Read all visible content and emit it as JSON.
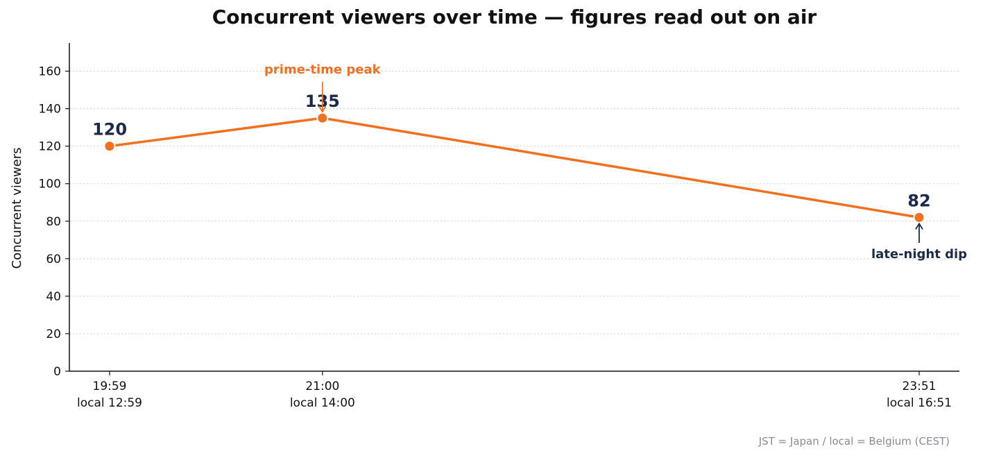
{
  "chart_data": {
    "type": "line",
    "title": "Concurrent viewers over time — figures read out on air",
    "ylabel": "Concurrent viewers",
    "xlabel": "",
    "ylim": [
      0,
      175
    ],
    "yticks": [
      0,
      20,
      40,
      60,
      80,
      100,
      120,
      140,
      160
    ],
    "grid": "horizontal dotted",
    "x": [
      "19:59",
      "21:00",
      "23:51"
    ],
    "x_local": [
      "local 12:59",
      "local 14:00",
      "local 16:51"
    ],
    "series": [
      {
        "values": [
          120,
          135,
          82
        ],
        "color": "#f07020"
      }
    ],
    "data_labels": [
      "120",
      "135",
      "82"
    ],
    "annotations": [
      {
        "text": "prime-time peak",
        "x": "21:00",
        "y": 135,
        "position": "above",
        "color": "#f07020"
      },
      {
        "text": "late-night dip",
        "x": "23:51",
        "y": 82,
        "position": "below",
        "color": "#1b2a4a"
      }
    ],
    "footnote": "JST = Japan / local = Belgium (CEST)"
  }
}
